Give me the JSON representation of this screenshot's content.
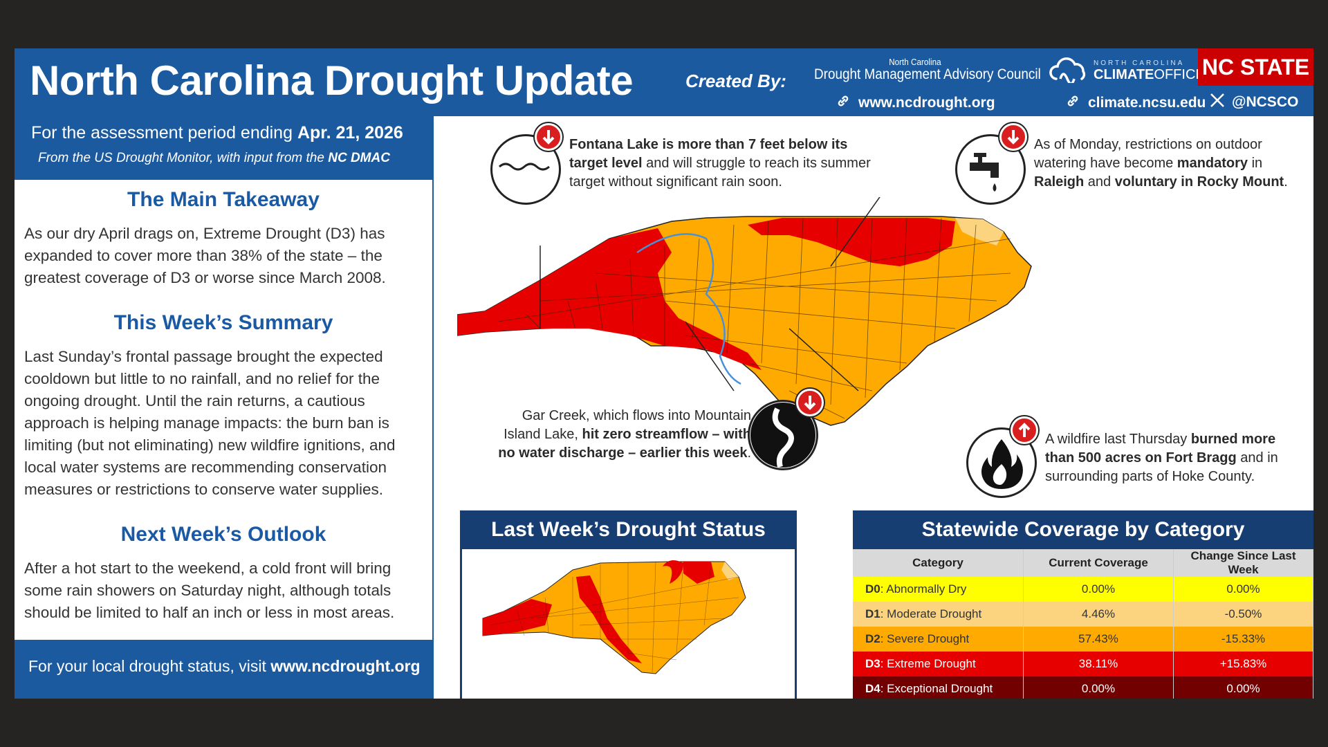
{
  "header": {
    "title": "North Carolina Drought Update",
    "created_by": "Created By:",
    "dmac_top": "North Carolina",
    "dmac_name": "Drought Management Advisory Council",
    "dmac_url": "www.ncdrought.org",
    "cco_small": "NORTH CAROLINA",
    "cco_climate": "CLIMATE",
    "cco_office": "OFFICE",
    "cco_url": "climate.ncsu.edu",
    "x_handle": "@NCSCO",
    "ncstate": "NC STATE"
  },
  "left": {
    "period_prefix": "For the assessment period ending",
    "period_date": "Apr. 21, 2026",
    "source_prefix": "From the US Drought Monitor, with input from the",
    "source_org": "NC DMAC",
    "takeaway_heading": "The Main Takeaway",
    "takeaway_text": "As our dry April drags on, Extreme Drought (D3) has expanded to cover more than 38% of the state – the greatest coverage of D3 or worse since March 2008.",
    "summary_heading": "This Week’s Summary",
    "summary_text": "Last Sunday’s frontal passage brought the expected cooldown but little to no rainfall, and no relief for the ongoing drought. Until the rain returns, a cautious approach is helping manage impacts: the burn ban is limiting (but not eliminating) new wildfire ignitions, and local water systems are recommending conservation measures or restrictions to conserve water supplies.",
    "outlook_heading": "Next Week’s Outlook",
    "outlook_text": "After a hot start to the weekend, a cold front will bring some rain showers on Saturday night, although totals should be limited to half an inch or less in most areas.",
    "footer_prefix": "For your local drought status, visit",
    "footer_url": "www.ncdrought.org"
  },
  "annotations": {
    "fontana_bold": "Fontana Lake is more than 7 feet below its target level",
    "fontana_rest": " and will struggle to reach its summer target without significant rain soon.",
    "monday_a": "As of Monday, restrictions on outdoor watering have become ",
    "monday_b": "mandatory",
    "monday_c": " in ",
    "monday_d": "Raleigh",
    "monday_e": " and ",
    "monday_f": "voluntary in Rocky Mount",
    "monday_g": ".",
    "gar_a": "Gar Creek, which flows into Mountain Island Lake, ",
    "gar_b": "hit zero streamflow – with no water discharge – earlier this week",
    "gar_c": ".",
    "fire_a": "A wildfire last Thursday ",
    "fire_b": "burned more than 500 acres on Fort Bragg",
    "fire_c": " and in surrounding parts of Hoke County."
  },
  "panels": {
    "last_week_title": "Last Week’s Drought Status",
    "coverage_title": "Statewide Coverage by Category"
  },
  "colors": {
    "blue": "#1c5a9f",
    "navy": "#173e72",
    "d0": "#ffff00",
    "d1": "#fcd37f",
    "d2": "#ffaa00",
    "d3": "#e60000",
    "d4": "#730000"
  },
  "table": {
    "headers": [
      "Category",
      "Current Coverage",
      "Change Since Last Week"
    ],
    "rows": [
      {
        "code": "D0",
        "name": ": Abnormally Dry",
        "current": "0.00%",
        "change": "0.00%"
      },
      {
        "code": "D1",
        "name": ": Moderate Drought",
        "current": "4.46%",
        "change": "-0.50%"
      },
      {
        "code": "D2",
        "name": ": Severe Drought",
        "current": "57.43%",
        "change": "-15.33%"
      },
      {
        "code": "D3",
        "name": ": Extreme Drought",
        "current": "38.11%",
        "change": "+15.83%"
      },
      {
        "code": "D4",
        "name": ": Exceptional Drought",
        "current": "0.00%",
        "change": "0.00%"
      }
    ]
  }
}
